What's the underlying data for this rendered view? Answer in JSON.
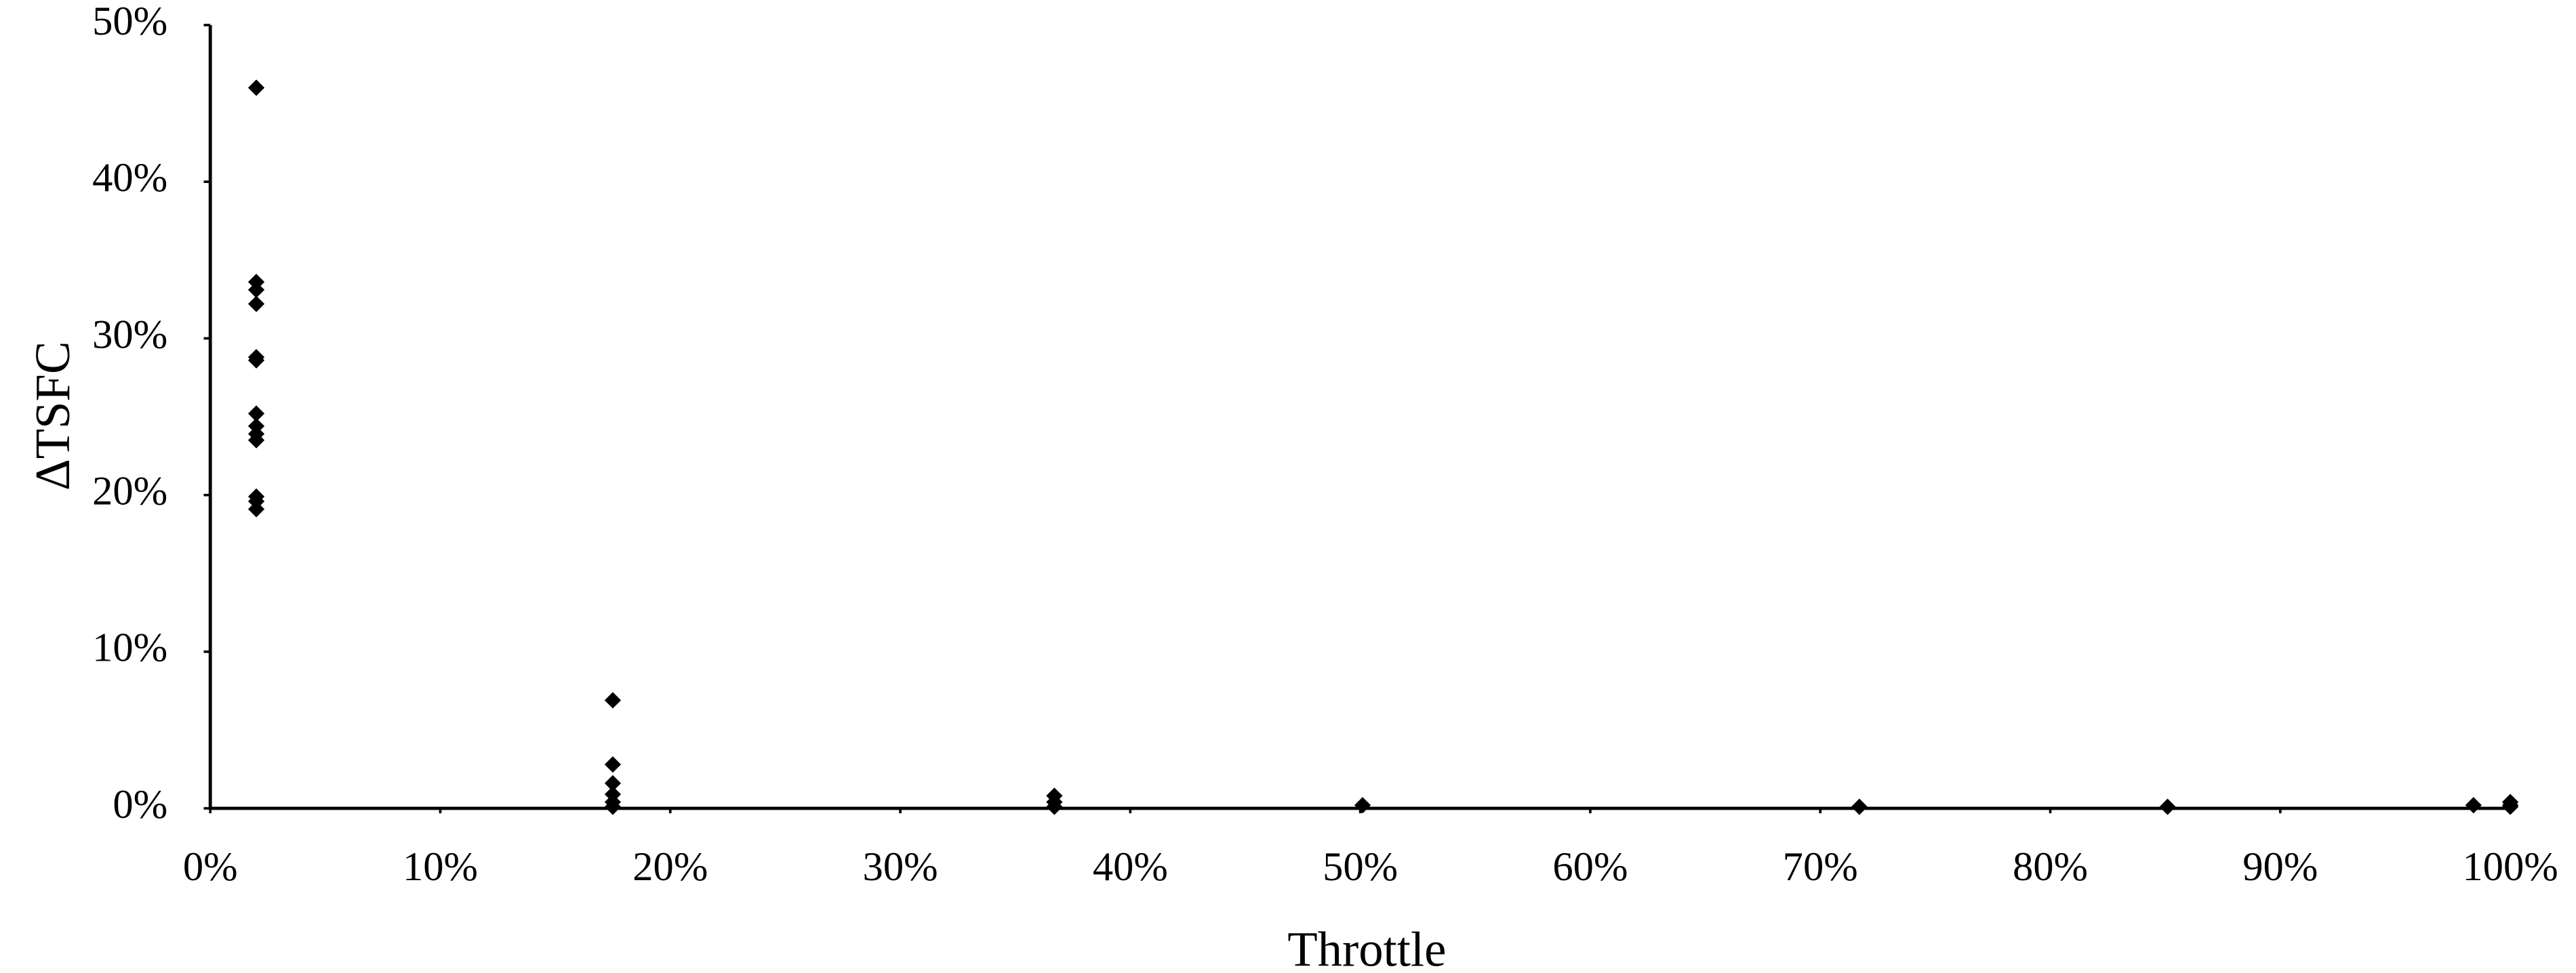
{
  "chart_data": {
    "type": "scatter",
    "x_label": "Throttle",
    "y_label": "ΔTSFC",
    "color": "#000000",
    "x": [
      2.0,
      2.0,
      2.0,
      2.0,
      2.0,
      2.0,
      2.0,
      2.0,
      2.0,
      2.0,
      2.0,
      2.0,
      2.0,
      17.5,
      17.5,
      17.5,
      17.5,
      17.5,
      17.5,
      36.7,
      36.7,
      36.7,
      50.1,
      71.7,
      85.1,
      98.4,
      100,
      100,
      100
    ],
    "values": [
      46.0,
      33.6,
      33.1,
      32.2,
      28.8,
      28.6,
      25.2,
      24.4,
      23.9,
      23.5,
      19.9,
      19.6,
      19.1,
      6.9,
      2.8,
      1.6,
      0.9,
      0.4,
      0.1,
      0.8,
      0.4,
      0.1,
      0.2,
      0.1,
      0.1,
      0.2,
      0.4,
      0.2,
      0.1
    ],
    "xlim": [
      0,
      100
    ],
    "ylim": [
      0,
      50
    ],
    "xticks": [
      {
        "value": 0,
        "label": "0%"
      },
      {
        "value": 10,
        "label": "10%"
      },
      {
        "value": 20,
        "label": "20%"
      },
      {
        "value": 30,
        "label": "30%"
      },
      {
        "value": 40,
        "label": "40%"
      },
      {
        "value": 50,
        "label": "50%"
      },
      {
        "value": 60,
        "label": "60%"
      },
      {
        "value": 70,
        "label": "70%"
      },
      {
        "value": 80,
        "label": "80%"
      },
      {
        "value": 90,
        "label": "90%"
      },
      {
        "value": 100,
        "label": "100%"
      }
    ],
    "yticks": [
      {
        "value": 0,
        "label": "0%"
      },
      {
        "value": 10,
        "label": "10%"
      },
      {
        "value": 20,
        "label": "20%"
      },
      {
        "value": 30,
        "label": "30%"
      },
      {
        "value": 40,
        "label": "40%"
      },
      {
        "value": 50,
        "label": "50%"
      }
    ]
  }
}
